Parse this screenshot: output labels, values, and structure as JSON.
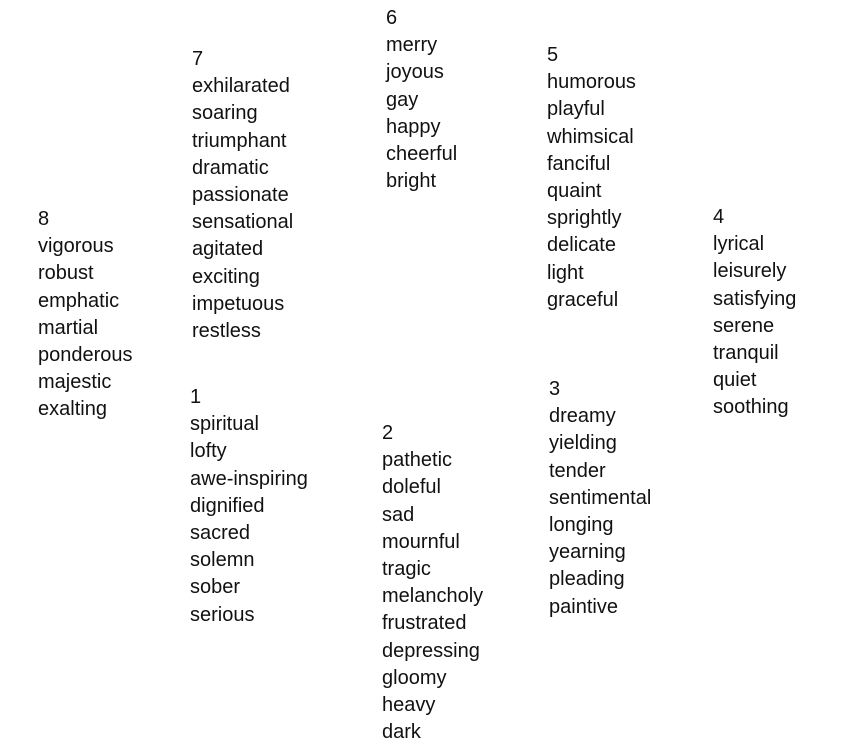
{
  "clusters": [
    {
      "number": "1",
      "words": [
        "spiritual",
        "lofty",
        "awe-inspiring",
        "dignified",
        "sacred",
        "solemn",
        "sober",
        "serious"
      ]
    },
    {
      "number": "2",
      "words": [
        "pathetic",
        "doleful",
        "sad",
        "mournful",
        "tragic",
        "melancholy",
        "frustrated",
        "depressing",
        "gloomy",
        "heavy",
        "dark"
      ]
    },
    {
      "number": "3",
      "words": [
        "dreamy",
        "yielding",
        "tender",
        "sentimental",
        "longing",
        "yearning",
        "pleading",
        "paintive"
      ]
    },
    {
      "number": "4",
      "words": [
        "lyrical",
        "leisurely",
        "satisfying",
        "serene",
        "tranquil",
        "quiet",
        "soothing"
      ]
    },
    {
      "number": "5",
      "words": [
        "humorous",
        "playful",
        "whimsical",
        "fanciful",
        "quaint",
        "sprightly",
        "delicate",
        "light",
        "graceful"
      ]
    },
    {
      "number": "6",
      "words": [
        "merry",
        "joyous",
        "gay",
        "happy",
        "cheerful",
        "bright"
      ]
    },
    {
      "number": "7",
      "words": [
        "exhilarated",
        "soaring",
        "triumphant",
        "dramatic",
        "passionate",
        "sensational",
        "agitated",
        "exciting",
        "impetuous",
        "restless"
      ]
    },
    {
      "number": "8",
      "words": [
        "vigorous",
        "robust",
        "emphatic",
        "martial",
        "ponderous",
        "majestic",
        "exalting"
      ]
    }
  ]
}
